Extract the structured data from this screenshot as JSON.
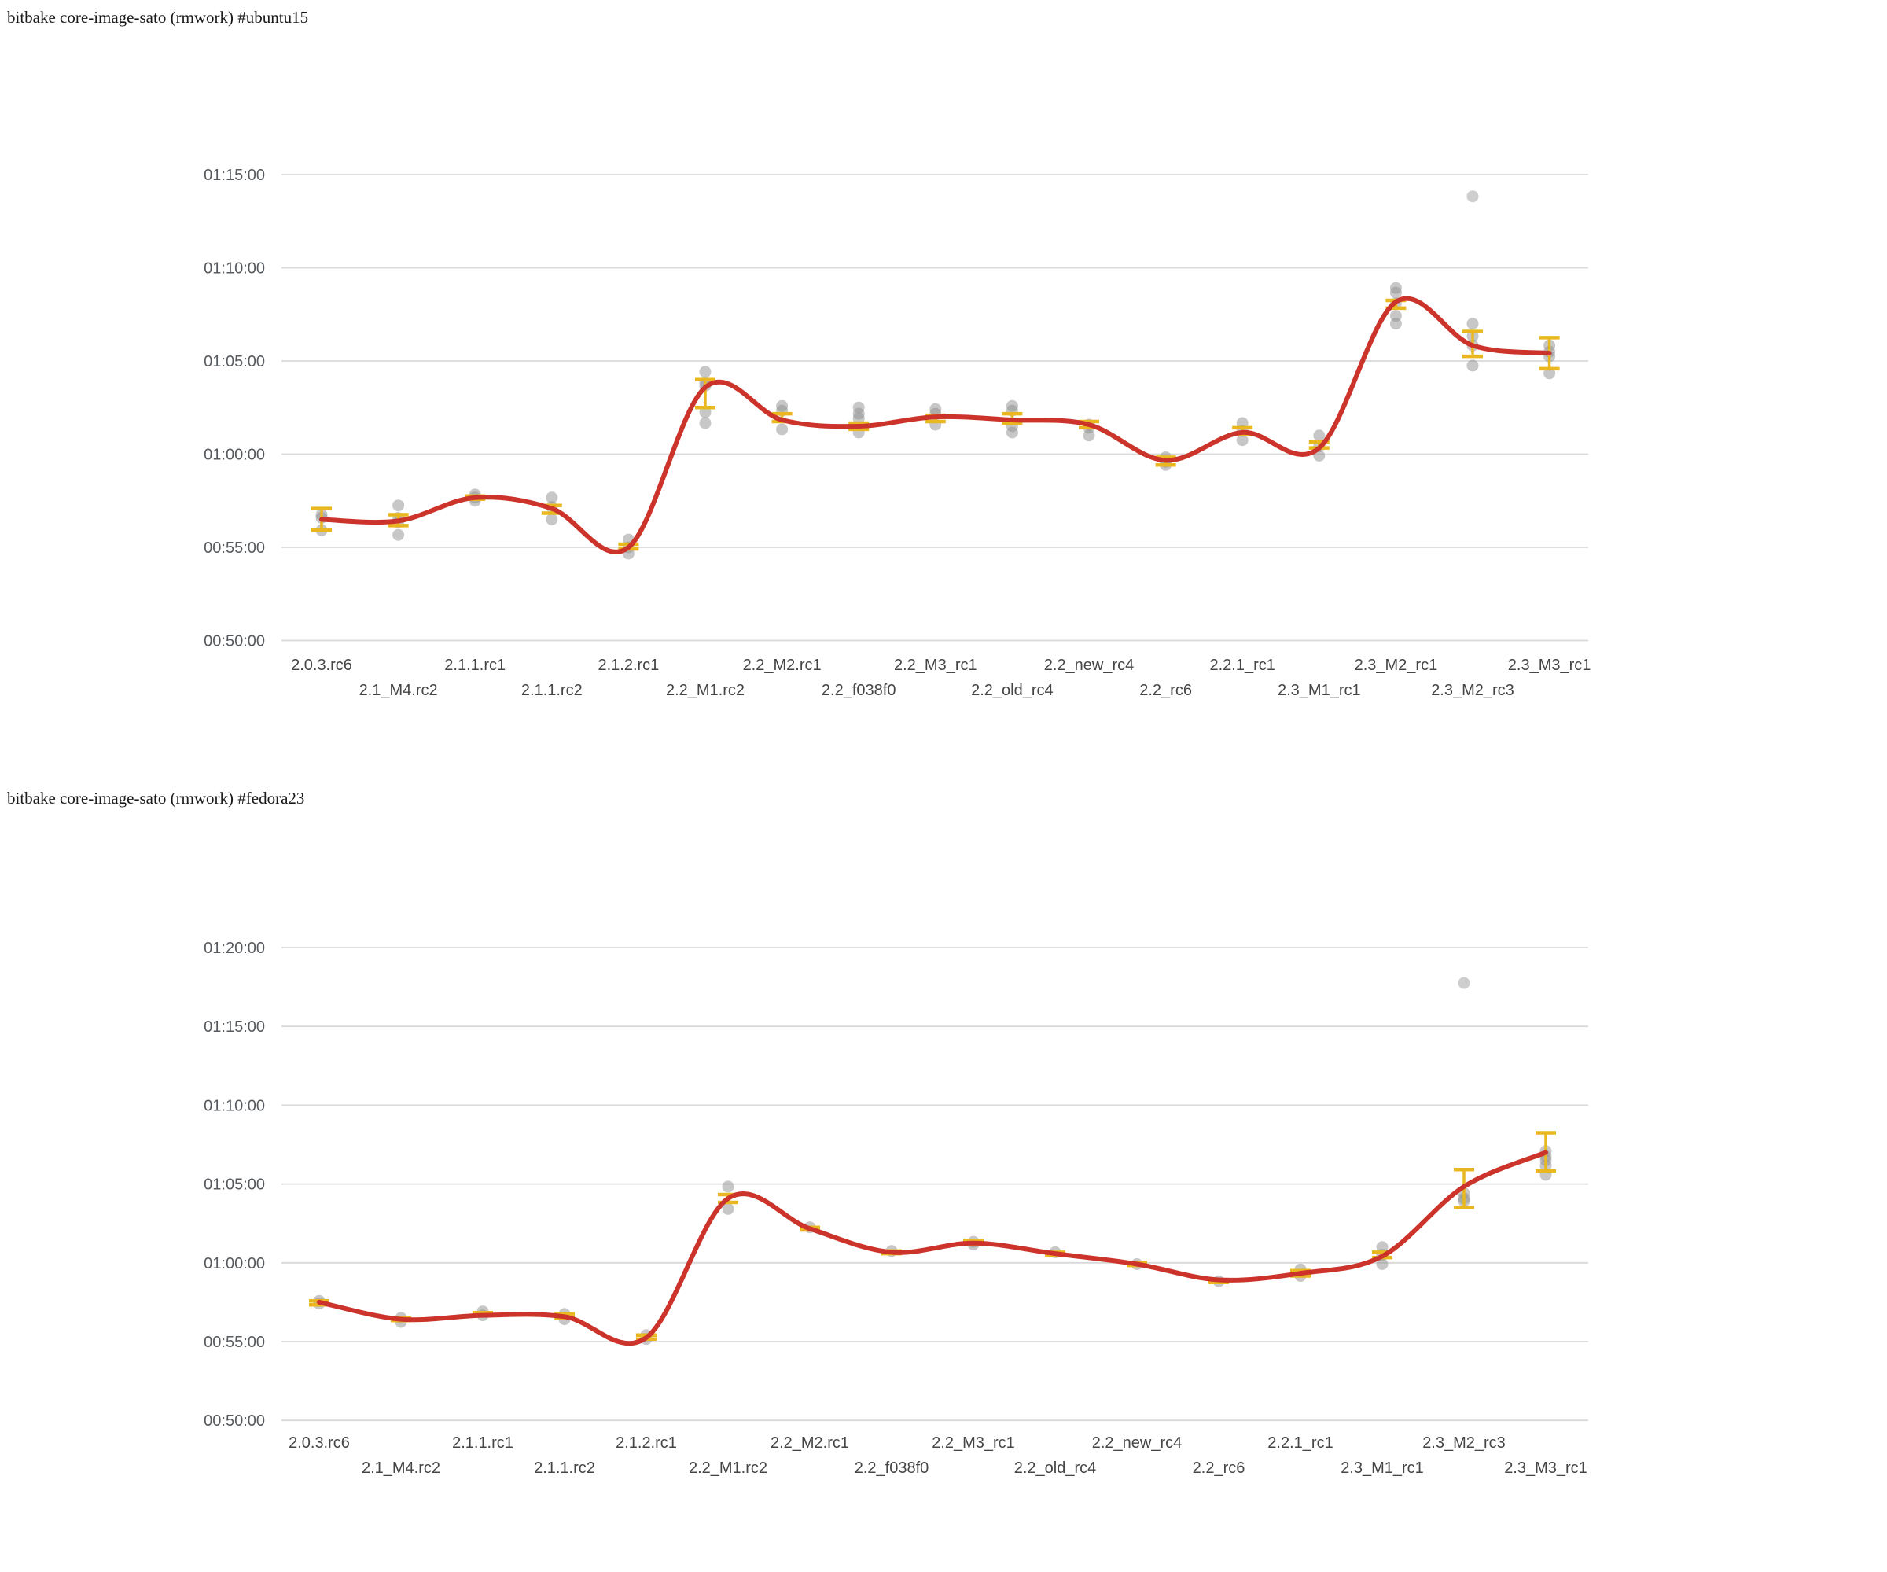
{
  "page": {
    "background": "#ffffff"
  },
  "colors": {
    "trend_line": "#cc342b",
    "error_bar": "#e9b820",
    "sample_dot": "#8f8f8f",
    "outlier_dot": "#bdbdbd",
    "grid_line": "#d9d9d9",
    "y_tick_text": "#565a5e",
    "x_tick_text": "#454545",
    "title_text": "#1a1a1a"
  },
  "chart_data": [
    {
      "type": "line",
      "title": "bitbake core-image-sato (rmwork) #ubuntu15",
      "ylabel": "",
      "xlabel": "",
      "y_ticks": [
        "01:15:00",
        "01:10:00",
        "01:05:00",
        "01:00:00",
        "00:55:00",
        "00:50:00"
      ],
      "ylim": [
        "00:50:00",
        "01:15:00"
      ],
      "grid": "horizontal",
      "legend": "none",
      "series_style": "smoothed trend line over sample scatter with error bars",
      "categories": [
        "2.0.3.rc6",
        "2.1_M4.rc2",
        "2.1.1.rc1",
        "2.1.1.rc2",
        "2.1.2.rc1",
        "2.2_M1.rc2",
        "2.2_M2.rc1",
        "2.2_f038f0",
        "2.2_M3_rc1",
        "2.2_old_rc4",
        "2.2_new_rc4",
        "2.2_rc6",
        "2.2.1_rc1",
        "2.3_M1_rc1",
        "2.3_M2_rc1",
        "2.3_M2_rc3",
        "2.3_M3_rc1"
      ],
      "points": [
        {
          "label": "2.0.3.rc6",
          "trend": "00:56:30",
          "samples": [
            "00:56:45",
            "00:56:35",
            "00:55:55"
          ],
          "error_low": "00:55:55",
          "error_high": "00:57:05"
        },
        {
          "label": "2.1_M4.rc2",
          "trend": "00:56:25",
          "samples": [
            "00:57:15",
            "00:56:35",
            "00:56:20",
            "00:55:40"
          ],
          "error_low": "00:56:10",
          "error_high": "00:56:45"
        },
        {
          "label": "2.1.1.rc1",
          "trend": "00:57:40",
          "samples": [
            "00:57:50",
            "00:57:40",
            "00:57:30"
          ],
          "error_low": "00:57:35",
          "error_high": "00:57:45"
        },
        {
          "label": "2.1.1.rc2",
          "trend": "00:57:05",
          "samples": [
            "00:57:40",
            "00:57:10",
            "00:56:30"
          ],
          "error_low": "00:56:50",
          "error_high": "00:57:15"
        },
        {
          "label": "2.1.2.rc1",
          "trend": "00:55:00",
          "samples": [
            "00:55:25",
            "00:55:00",
            "00:54:40"
          ],
          "error_low": "00:54:55",
          "error_high": "00:55:10"
        },
        {
          "label": "2.2_M1.rc2",
          "trend": "01:03:35",
          "samples": [
            "01:04:25",
            "01:03:50",
            "01:03:40",
            "01:02:15",
            "01:01:40"
          ],
          "error_low": "01:02:30",
          "error_high": "01:04:00"
        },
        {
          "label": "2.2_M2.rc1",
          "trend": "01:01:50",
          "samples": [
            "01:02:35",
            "01:02:20",
            "01:01:20"
          ],
          "error_low": "01:01:45",
          "error_high": "01:02:10"
        },
        {
          "label": "2.2_f038f0",
          "trend": "01:01:30",
          "samples": [
            "01:02:30",
            "01:02:10",
            "01:01:55",
            "01:01:10"
          ],
          "error_low": "01:01:20",
          "error_high": "01:01:40"
        },
        {
          "label": "2.2_M3_rc1",
          "trend": "01:02:00",
          "samples": [
            "01:02:25",
            "01:02:10",
            "01:01:35"
          ],
          "error_low": "01:01:45",
          "error_high": "01:02:05"
        },
        {
          "label": "2.2_old_rc4",
          "trend": "01:01:50",
          "samples": [
            "01:02:35",
            "01:02:20",
            "01:01:30",
            "01:01:10"
          ],
          "error_low": "01:01:40",
          "error_high": "01:02:10"
        },
        {
          "label": "2.2_new_rc4",
          "trend": "01:01:35",
          "samples": [
            "01:01:35",
            "01:01:25",
            "01:01:00"
          ],
          "error_low": "01:01:25",
          "error_high": "01:01:45"
        },
        {
          "label": "2.2_rc6",
          "trend": "00:59:40",
          "samples": [
            "00:59:50",
            "00:59:35",
            "00:59:25"
          ],
          "error_low": "00:59:25",
          "error_high": "00:59:50"
        },
        {
          "label": "2.2.1_rc1",
          "trend": "01:01:10",
          "samples": [
            "01:01:40",
            "01:01:15",
            "01:00:45"
          ],
          "error_low": "01:01:05",
          "error_high": "01:01:25"
        },
        {
          "label": "2.3_M1_rc1",
          "trend": "01:00:20",
          "samples": [
            "01:01:00",
            "01:00:25",
            "00:59:55"
          ],
          "error_low": "01:00:20",
          "error_high": "01:00:40"
        },
        {
          "label": "2.3_M2_rc1",
          "trend": "01:08:10",
          "samples": [
            "01:08:55",
            "01:08:40",
            "01:08:05",
            "01:07:25",
            "01:07:00"
          ],
          "error_low": "01:07:50",
          "error_high": "01:08:15"
        },
        {
          "label": "2.3_M2_rc3",
          "trend": "01:05:50",
          "samples": [
            "01:07:00",
            "01:06:20",
            "01:05:50",
            "01:04:45"
          ],
          "outliers": [
            "01:13:50"
          ],
          "error_low": "01:05:15",
          "error_high": "01:06:35"
        },
        {
          "label": "2.3_M3_rc1",
          "trend": "01:05:25",
          "samples": [
            "01:05:50",
            "01:05:30",
            "01:05:15",
            "01:04:20"
          ],
          "error_low": "01:04:35",
          "error_high": "01:06:15"
        }
      ]
    },
    {
      "type": "line",
      "title": "bitbake core-image-sato (rmwork) #fedora23",
      "ylabel": "",
      "xlabel": "",
      "y_ticks": [
        "01:20:00",
        "01:15:00",
        "01:10:00",
        "01:05:00",
        "01:00:00",
        "00:55:00",
        "00:50:00"
      ],
      "ylim": [
        "00:50:00",
        "01:20:00"
      ],
      "grid": "horizontal",
      "legend": "none",
      "series_style": "smoothed trend line over sample scatter with error bars",
      "categories": [
        "2.0.3.rc6",
        "2.1_M4.rc2",
        "2.1.1.rc1",
        "2.1.1.rc2",
        "2.1.2.rc1",
        "2.2_M1.rc2",
        "2.2_M2.rc1",
        "2.2_f038f0",
        "2.2_M3_rc1",
        "2.2_old_rc4",
        "2.2_new_rc4",
        "2.2_rc6",
        "2.2.1_rc1",
        "2.3_M1_rc1",
        "2.3_M2_rc3",
        "2.3_M3_rc1"
      ],
      "points": [
        {
          "label": "2.0.3.rc6",
          "trend": "00:57:30",
          "samples": [
            "00:57:35",
            "00:57:25"
          ],
          "error_low": "00:57:20",
          "error_high": "00:57:35"
        },
        {
          "label": "2.1_M4.rc2",
          "trend": "00:56:25",
          "samples": [
            "00:56:30",
            "00:56:15"
          ],
          "error_low": "00:56:20",
          "error_high": "00:56:30"
        },
        {
          "label": "2.1.1.rc1",
          "trend": "00:56:40",
          "samples": [
            "00:56:55",
            "00:56:40"
          ],
          "error_low": "00:56:40",
          "error_high": "00:56:50"
        },
        {
          "label": "2.1.1.rc2",
          "trend": "00:56:35",
          "samples": [
            "00:56:45",
            "00:56:25"
          ],
          "error_low": "00:56:30",
          "error_high": "00:56:45"
        },
        {
          "label": "2.1.2.rc1",
          "trend": "00:55:15",
          "samples": [
            "00:55:25",
            "00:55:10"
          ],
          "error_low": "00:55:10",
          "error_high": "00:55:25"
        },
        {
          "label": "2.2_M1.rc2",
          "trend": "01:04:05",
          "samples": [
            "01:04:50",
            "01:03:25"
          ],
          "error_low": "01:03:50",
          "error_high": "01:04:20"
        },
        {
          "label": "2.2_M2.rc1",
          "trend": "01:02:10",
          "samples": [
            "01:02:15"
          ],
          "error_low": "01:02:05",
          "error_high": "01:02:15"
        },
        {
          "label": "2.2_f038f0",
          "trend": "01:00:40",
          "samples": [
            "01:00:45"
          ],
          "error_low": "01:00:35",
          "error_high": "01:00:45"
        },
        {
          "label": "2.2_M3_rc1",
          "trend": "01:01:15",
          "samples": [
            "01:01:20",
            "01:01:10"
          ],
          "error_low": "01:01:10",
          "error_high": "01:01:25"
        },
        {
          "label": "2.2_old_rc4",
          "trend": "01:00:35",
          "samples": [
            "01:00:40"
          ],
          "error_low": "01:00:30",
          "error_high": "01:00:40"
        },
        {
          "label": "2.2_new_rc4",
          "trend": "00:59:55",
          "samples": [
            "00:59:55"
          ],
          "error_low": "00:59:50",
          "error_high": "01:00:00"
        },
        {
          "label": "2.2_rc6",
          "trend": "00:58:55",
          "samples": [
            "00:58:50"
          ],
          "error_low": "00:58:45",
          "error_high": "00:58:55"
        },
        {
          "label": "2.2.1_rc1",
          "trend": "00:59:20",
          "samples": [
            "00:59:35",
            "00:59:10"
          ],
          "error_low": "00:59:10",
          "error_high": "00:59:30"
        },
        {
          "label": "2.3_M1_rc1",
          "trend": "01:00:25",
          "samples": [
            "01:01:00",
            "01:00:30",
            "00:59:55"
          ],
          "error_low": "01:00:20",
          "error_high": "01:00:40"
        },
        {
          "label": "2.3_M2_rc3",
          "trend": "01:04:50",
          "samples": [
            "01:04:25",
            "01:04:05",
            "01:03:55"
          ],
          "outliers": [
            "01:17:45"
          ],
          "error_low": "01:03:30",
          "error_high": "01:05:55"
        },
        {
          "label": "2.3_M3_rc1",
          "trend": "01:07:00",
          "samples": [
            "01:07:05",
            "01:06:45",
            "01:06:30",
            "01:06:10",
            "01:05:35"
          ],
          "error_low": "01:05:50",
          "error_high": "01:08:15"
        }
      ]
    }
  ]
}
